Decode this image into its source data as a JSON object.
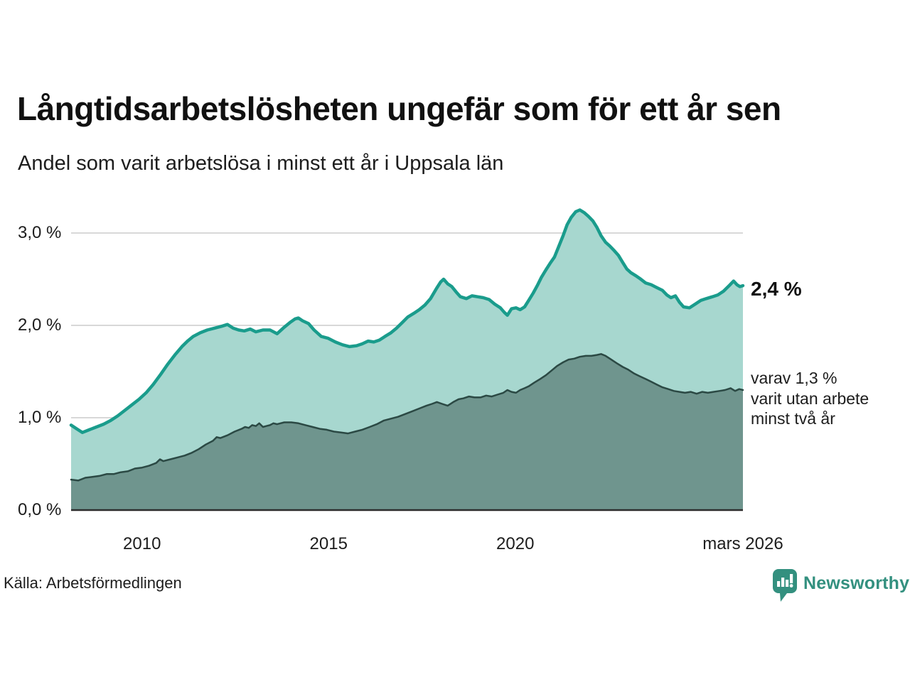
{
  "header": {
    "title": "Långtidsarbetslösheten ungefär som för ett år sen",
    "subtitle": "Andel som varit arbetslösa i minst ett år i Uppsala län"
  },
  "annotations": {
    "total": "2,4 %",
    "sub_line1": "varav 1,3 %",
    "sub_line2": "varit utan arbete",
    "sub_line3": "minst två år"
  },
  "footer": {
    "source": "Källa: Arbetsförmedlingen",
    "brand": "Newsworthy"
  },
  "colors": {
    "accent_line": "#1a9c8c",
    "accent_fill": "#a7d7cf",
    "dark_line": "#2b4944",
    "dark_fill": "#6f958e",
    "grid": "#d8d8d8",
    "axis": "#2d2d2d",
    "brand": "#33907f",
    "text": "#111111"
  },
  "chart_data": {
    "type": "area",
    "title": "Långtidsarbetslösheten ungefär som för ett år sen",
    "subtitle": "Andel som varit arbetslösa i minst ett år i Uppsala län",
    "xlabel": "",
    "ylabel": "",
    "grid": true,
    "legend_position": "right-annotations",
    "x_range": [
      2008.1,
      2026.1
    ],
    "ylim": [
      0,
      3.4
    ],
    "yticks": [
      {
        "value": 0,
        "label": "0,0 %"
      },
      {
        "value": 1,
        "label": "1,0 %"
      },
      {
        "value": 2,
        "label": "2,0 %"
      },
      {
        "value": 3,
        "label": "3,0 %"
      }
    ],
    "xticks": [
      {
        "year": 2010,
        "label": "2010"
      },
      {
        "year": 2015,
        "label": "2015"
      },
      {
        "year": 2020,
        "label": "2020"
      },
      {
        "year": 2026.1,
        "label": "mars 2026"
      }
    ],
    "series": [
      {
        "name": "Andel som varit arbetslösa i minst ett år",
        "end_label": "2,4 %",
        "line_color": "#1a9c8c",
        "fill_color": "#a7d7cf",
        "line_width": 4.5,
        "points": [
          [
            2008.1,
            0.92
          ],
          [
            2008.25,
            0.88
          ],
          [
            2008.4,
            0.84
          ],
          [
            2008.59,
            0.87
          ],
          [
            2008.78,
            0.9
          ],
          [
            2008.97,
            0.93
          ],
          [
            2009.16,
            0.97
          ],
          [
            2009.35,
            1.02
          ],
          [
            2009.54,
            1.08
          ],
          [
            2009.73,
            1.14
          ],
          [
            2009.92,
            1.2
          ],
          [
            2010.11,
            1.27
          ],
          [
            2010.3,
            1.36
          ],
          [
            2010.5,
            1.47
          ],
          [
            2010.69,
            1.58
          ],
          [
            2010.88,
            1.68
          ],
          [
            2011.07,
            1.77
          ],
          [
            2011.22,
            1.83
          ],
          [
            2011.37,
            1.88
          ],
          [
            2011.56,
            1.92
          ],
          [
            2011.75,
            1.95
          ],
          [
            2011.94,
            1.97
          ],
          [
            2012.13,
            1.99
          ],
          [
            2012.29,
            2.01
          ],
          [
            2012.44,
            1.97
          ],
          [
            2012.59,
            1.95
          ],
          [
            2012.74,
            1.94
          ],
          [
            2012.9,
            1.96
          ],
          [
            2013.05,
            1.93
          ],
          [
            2013.24,
            1.95
          ],
          [
            2013.43,
            1.95
          ],
          [
            2013.62,
            1.91
          ],
          [
            2013.81,
            1.98
          ],
          [
            2013.96,
            2.03
          ],
          [
            2014.1,
            2.07
          ],
          [
            2014.19,
            2.08
          ],
          [
            2014.3,
            2.05
          ],
          [
            2014.46,
            2.02
          ],
          [
            2014.61,
            1.95
          ],
          [
            2014.8,
            1.88
          ],
          [
            2014.99,
            1.86
          ],
          [
            2015.18,
            1.82
          ],
          [
            2015.37,
            1.79
          ],
          [
            2015.56,
            1.77
          ],
          [
            2015.75,
            1.78
          ],
          [
            2015.9,
            1.8
          ],
          [
            2016.06,
            1.83
          ],
          [
            2016.21,
            1.82
          ],
          [
            2016.36,
            1.84
          ],
          [
            2016.51,
            1.88
          ],
          [
            2016.67,
            1.92
          ],
          [
            2016.82,
            1.97
          ],
          [
            2016.97,
            2.03
          ],
          [
            2017.12,
            2.09
          ],
          [
            2017.28,
            2.13
          ],
          [
            2017.43,
            2.17
          ],
          [
            2017.58,
            2.22
          ],
          [
            2017.73,
            2.29
          ],
          [
            2017.89,
            2.4
          ],
          [
            2018.0,
            2.47
          ],
          [
            2018.08,
            2.5
          ],
          [
            2018.19,
            2.45
          ],
          [
            2018.3,
            2.42
          ],
          [
            2018.42,
            2.36
          ],
          [
            2018.53,
            2.31
          ],
          [
            2018.69,
            2.29
          ],
          [
            2018.84,
            2.32
          ],
          [
            2018.99,
            2.31
          ],
          [
            2019.14,
            2.3
          ],
          [
            2019.3,
            2.28
          ],
          [
            2019.45,
            2.23
          ],
          [
            2019.6,
            2.19
          ],
          [
            2019.71,
            2.14
          ],
          [
            2019.79,
            2.11
          ],
          [
            2019.9,
            2.18
          ],
          [
            2020.02,
            2.19
          ],
          [
            2020.13,
            2.17
          ],
          [
            2020.25,
            2.2
          ],
          [
            2020.36,
            2.27
          ],
          [
            2020.48,
            2.35
          ],
          [
            2020.59,
            2.43
          ],
          [
            2020.7,
            2.52
          ],
          [
            2020.82,
            2.6
          ],
          [
            2020.93,
            2.67
          ],
          [
            2021.05,
            2.74
          ],
          [
            2021.16,
            2.85
          ],
          [
            2021.28,
            2.97
          ],
          [
            2021.39,
            3.09
          ],
          [
            2021.5,
            3.17
          ],
          [
            2021.62,
            3.23
          ],
          [
            2021.73,
            3.25
          ],
          [
            2021.85,
            3.22
          ],
          [
            2021.96,
            3.18
          ],
          [
            2022.08,
            3.13
          ],
          [
            2022.19,
            3.06
          ],
          [
            2022.3,
            2.97
          ],
          [
            2022.42,
            2.9
          ],
          [
            2022.53,
            2.86
          ],
          [
            2022.65,
            2.81
          ],
          [
            2022.76,
            2.76
          ],
          [
            2022.88,
            2.68
          ],
          [
            2022.99,
            2.61
          ],
          [
            2023.1,
            2.57
          ],
          [
            2023.22,
            2.54
          ],
          [
            2023.33,
            2.51
          ],
          [
            2023.49,
            2.46
          ],
          [
            2023.64,
            2.44
          ],
          [
            2023.79,
            2.41
          ],
          [
            2023.94,
            2.38
          ],
          [
            2024.06,
            2.33
          ],
          [
            2024.17,
            2.3
          ],
          [
            2024.29,
            2.32
          ],
          [
            2024.4,
            2.25
          ],
          [
            2024.51,
            2.2
          ],
          [
            2024.67,
            2.19
          ],
          [
            2024.82,
            2.23
          ],
          [
            2024.97,
            2.27
          ],
          [
            2025.12,
            2.29
          ],
          [
            2025.28,
            2.31
          ],
          [
            2025.43,
            2.33
          ],
          [
            2025.58,
            2.37
          ],
          [
            2025.73,
            2.43
          ],
          [
            2025.85,
            2.48
          ],
          [
            2025.94,
            2.44
          ],
          [
            2026.02,
            2.42
          ],
          [
            2026.1,
            2.43
          ]
        ]
      },
      {
        "name": "varav varit utan arbete minst två år",
        "end_label": "varav 1,3 % varit utan arbete minst två år",
        "line_color": "#2b4944",
        "fill_color": "#6f958e",
        "line_width": 2.5,
        "points": [
          [
            2008.1,
            0.33
          ],
          [
            2008.29,
            0.32
          ],
          [
            2008.48,
            0.35
          ],
          [
            2008.67,
            0.36
          ],
          [
            2008.86,
            0.37
          ],
          [
            2009.05,
            0.39
          ],
          [
            2009.24,
            0.39
          ],
          [
            2009.43,
            0.41
          ],
          [
            2009.62,
            0.42
          ],
          [
            2009.81,
            0.45
          ],
          [
            2010.0,
            0.46
          ],
          [
            2010.19,
            0.48
          ],
          [
            2010.38,
            0.51
          ],
          [
            2010.48,
            0.55
          ],
          [
            2010.57,
            0.53
          ],
          [
            2010.76,
            0.55
          ],
          [
            2010.95,
            0.57
          ],
          [
            2011.14,
            0.59
          ],
          [
            2011.33,
            0.62
          ],
          [
            2011.52,
            0.66
          ],
          [
            2011.71,
            0.71
          ],
          [
            2011.9,
            0.75
          ],
          [
            2012.0,
            0.79
          ],
          [
            2012.1,
            0.78
          ],
          [
            2012.29,
            0.81
          ],
          [
            2012.48,
            0.85
          ],
          [
            2012.67,
            0.88
          ],
          [
            2012.76,
            0.9
          ],
          [
            2012.86,
            0.89
          ],
          [
            2012.95,
            0.92
          ],
          [
            2013.05,
            0.91
          ],
          [
            2013.14,
            0.94
          ],
          [
            2013.24,
            0.9
          ],
          [
            2013.33,
            0.91
          ],
          [
            2013.43,
            0.92
          ],
          [
            2013.52,
            0.94
          ],
          [
            2013.62,
            0.93
          ],
          [
            2013.81,
            0.95
          ],
          [
            2014.0,
            0.95
          ],
          [
            2014.19,
            0.94
          ],
          [
            2014.38,
            0.92
          ],
          [
            2014.57,
            0.9
          ],
          [
            2014.76,
            0.88
          ],
          [
            2014.95,
            0.87
          ],
          [
            2015.14,
            0.85
          ],
          [
            2015.33,
            0.84
          ],
          [
            2015.52,
            0.83
          ],
          [
            2015.71,
            0.85
          ],
          [
            2015.9,
            0.87
          ],
          [
            2016.1,
            0.9
          ],
          [
            2016.29,
            0.93
          ],
          [
            2016.48,
            0.97
          ],
          [
            2016.67,
            0.99
          ],
          [
            2016.86,
            1.01
          ],
          [
            2017.05,
            1.04
          ],
          [
            2017.24,
            1.07
          ],
          [
            2017.43,
            1.1
          ],
          [
            2017.62,
            1.13
          ],
          [
            2017.77,
            1.15
          ],
          [
            2017.9,
            1.17
          ],
          [
            2018.04,
            1.15
          ],
          [
            2018.19,
            1.13
          ],
          [
            2018.34,
            1.17
          ],
          [
            2018.48,
            1.2
          ],
          [
            2018.61,
            1.21
          ],
          [
            2018.76,
            1.23
          ],
          [
            2018.91,
            1.22
          ],
          [
            2019.07,
            1.22
          ],
          [
            2019.22,
            1.24
          ],
          [
            2019.37,
            1.23
          ],
          [
            2019.52,
            1.25
          ],
          [
            2019.68,
            1.27
          ],
          [
            2019.79,
            1.3
          ],
          [
            2019.9,
            1.28
          ],
          [
            2020.02,
            1.27
          ],
          [
            2020.13,
            1.3
          ],
          [
            2020.25,
            1.32
          ],
          [
            2020.36,
            1.34
          ],
          [
            2020.51,
            1.38
          ],
          [
            2020.67,
            1.42
          ],
          [
            2020.82,
            1.46
          ],
          [
            2020.97,
            1.51
          ],
          [
            2021.12,
            1.56
          ],
          [
            2021.28,
            1.6
          ],
          [
            2021.43,
            1.63
          ],
          [
            2021.58,
            1.64
          ],
          [
            2021.73,
            1.66
          ],
          [
            2021.89,
            1.67
          ],
          [
            2022.04,
            1.67
          ],
          [
            2022.19,
            1.68
          ],
          [
            2022.3,
            1.69
          ],
          [
            2022.42,
            1.67
          ],
          [
            2022.57,
            1.63
          ],
          [
            2022.72,
            1.59
          ],
          [
            2022.88,
            1.55
          ],
          [
            2023.03,
            1.52
          ],
          [
            2023.18,
            1.48
          ],
          [
            2023.33,
            1.45
          ],
          [
            2023.49,
            1.42
          ],
          [
            2023.64,
            1.39
          ],
          [
            2023.79,
            1.36
          ],
          [
            2023.94,
            1.33
          ],
          [
            2024.1,
            1.31
          ],
          [
            2024.25,
            1.29
          ],
          [
            2024.4,
            1.28
          ],
          [
            2024.55,
            1.27
          ],
          [
            2024.7,
            1.28
          ],
          [
            2024.86,
            1.26
          ],
          [
            2025.01,
            1.28
          ],
          [
            2025.16,
            1.27
          ],
          [
            2025.31,
            1.28
          ],
          [
            2025.47,
            1.29
          ],
          [
            2025.62,
            1.3
          ],
          [
            2025.77,
            1.32
          ],
          [
            2025.89,
            1.29
          ],
          [
            2026.0,
            1.31
          ],
          [
            2026.1,
            1.3
          ]
        ]
      }
    ]
  }
}
